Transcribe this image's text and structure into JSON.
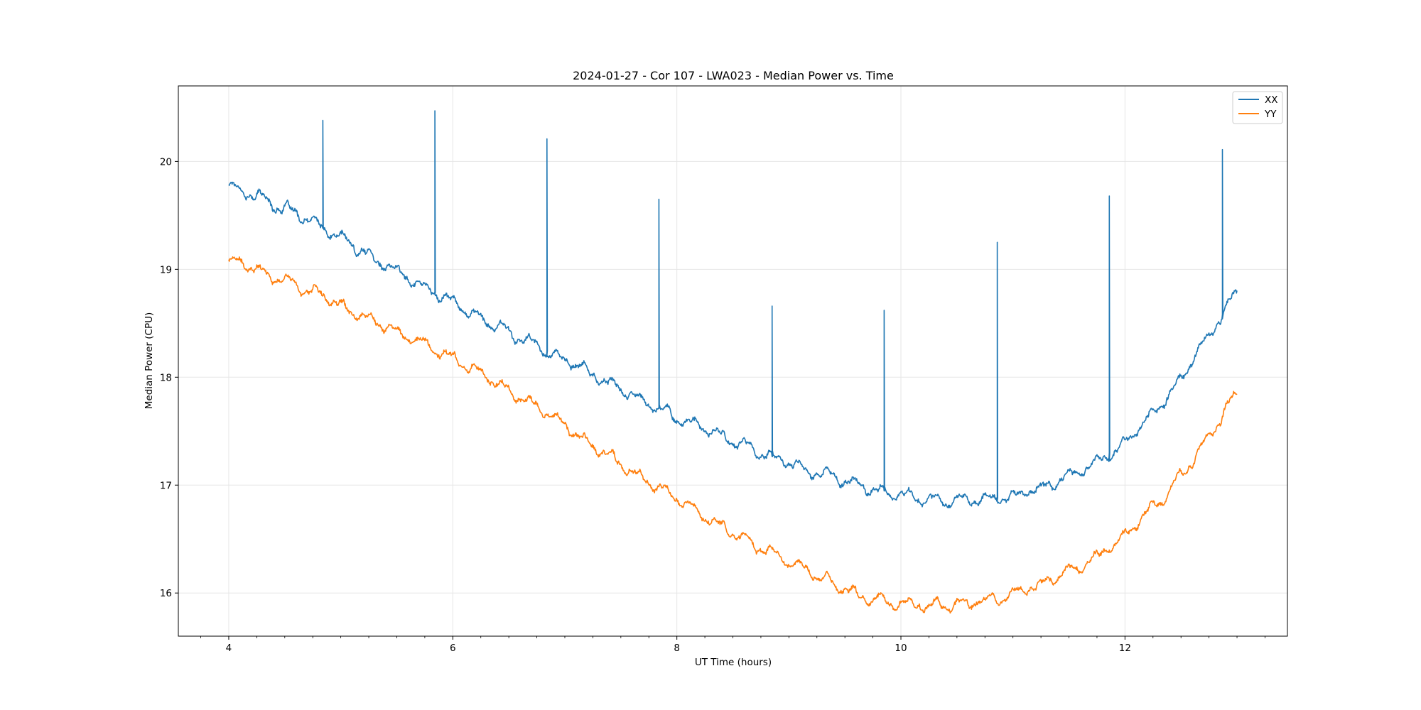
{
  "chart_data": {
    "type": "line",
    "title": "2024-01-27 - Cor 107 - LWA023 - Median Power vs. Time",
    "xlabel": "UT Time (hours)",
    "ylabel": "Median Power (CPU)",
    "xlim": [
      3.55,
      13.45
    ],
    "ylim": [
      15.6,
      20.7
    ],
    "xticks": [
      4,
      6,
      8,
      10,
      12
    ],
    "xtick_labels": [
      "4",
      "6",
      "8",
      "10",
      "12"
    ],
    "yticks": [
      16,
      17,
      18,
      19,
      20
    ],
    "ytick_labels": [
      "16",
      "17",
      "18",
      "19",
      "20"
    ],
    "grid": true,
    "legend_position": "top-right",
    "series": [
      {
        "name": "XX",
        "color": "#1f77b4",
        "x": [
          4.0,
          4.25,
          4.5,
          4.75,
          5.0,
          5.25,
          5.5,
          5.75,
          6.0,
          6.25,
          6.5,
          6.75,
          7.0,
          7.25,
          7.5,
          7.75,
          8.0,
          8.25,
          8.5,
          8.75,
          9.0,
          9.25,
          9.5,
          9.75,
          10.0,
          10.25,
          10.5,
          10.75,
          11.0,
          11.25,
          11.5,
          11.75,
          12.0,
          12.25,
          12.5,
          12.75,
          13.0
        ],
        "y": [
          19.78,
          19.68,
          19.56,
          19.43,
          19.29,
          19.13,
          18.98,
          18.84,
          18.7,
          18.55,
          18.41,
          18.29,
          18.16,
          18.02,
          17.89,
          17.76,
          17.63,
          17.52,
          17.41,
          17.3,
          17.21,
          17.12,
          17.04,
          16.97,
          16.91,
          16.87,
          16.86,
          16.87,
          16.9,
          16.97,
          17.08,
          17.22,
          17.4,
          17.66,
          17.98,
          18.38,
          18.8
        ],
        "spikes": [
          {
            "x": 4.84,
            "y": 20.38
          },
          {
            "x": 5.84,
            "y": 20.47
          },
          {
            "x": 6.84,
            "y": 20.21
          },
          {
            "x": 7.84,
            "y": 19.65
          },
          {
            "x": 8.85,
            "y": 18.66
          },
          {
            "x": 9.85,
            "y": 18.62
          },
          {
            "x": 10.86,
            "y": 19.25
          },
          {
            "x": 11.86,
            "y": 19.68
          },
          {
            "x": 12.87,
            "y": 20.11
          }
        ]
      },
      {
        "name": "YY",
        "color": "#ff7f0e",
        "x": [
          4.0,
          4.25,
          4.5,
          4.75,
          5.0,
          5.25,
          5.5,
          5.75,
          6.0,
          6.25,
          6.5,
          6.75,
          7.0,
          7.25,
          7.5,
          7.75,
          8.0,
          8.25,
          8.5,
          8.75,
          9.0,
          9.25,
          9.5,
          9.75,
          10.0,
          10.25,
          10.5,
          10.75,
          11.0,
          11.25,
          11.5,
          11.75,
          12.0,
          12.25,
          12.5,
          12.75,
          13.0
        ],
        "y": [
          19.08,
          19.0,
          18.9,
          18.79,
          18.68,
          18.55,
          18.42,
          18.3,
          18.18,
          18.04,
          17.88,
          17.72,
          17.55,
          17.37,
          17.19,
          17.03,
          16.87,
          16.71,
          16.56,
          16.42,
          16.28,
          16.15,
          16.04,
          15.95,
          15.9,
          15.88,
          15.89,
          15.92,
          15.98,
          16.08,
          16.2,
          16.35,
          16.53,
          16.78,
          17.08,
          17.45,
          17.85
        ],
        "spikes": []
      }
    ]
  }
}
